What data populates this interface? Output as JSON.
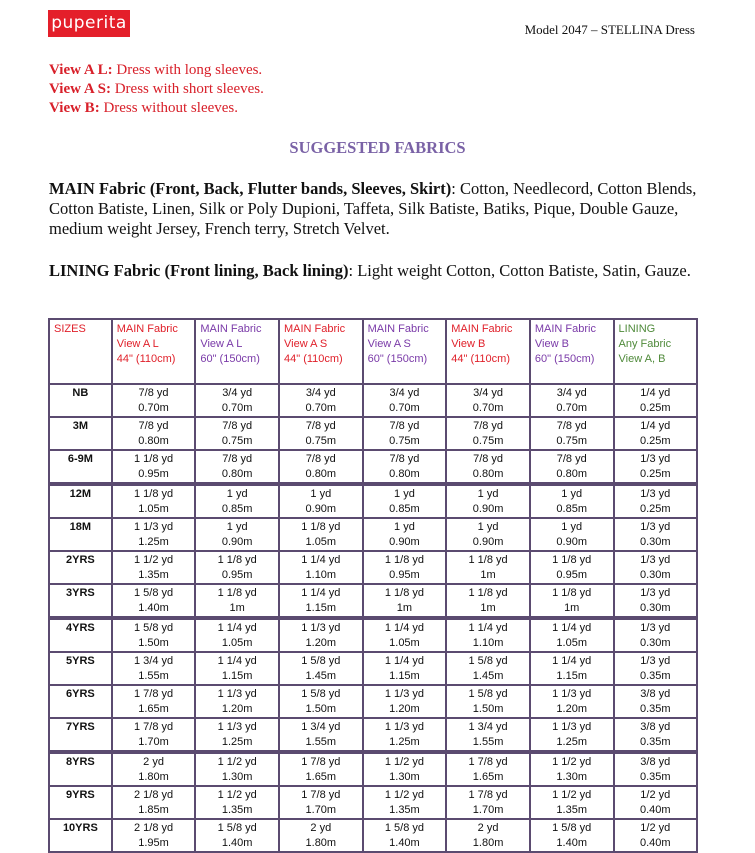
{
  "header": {
    "logo_text": "puperita",
    "model": "Model 2047 – STELLINA Dress"
  },
  "views": [
    {
      "label": "View A L:",
      "text": " Dress with long sleeves."
    },
    {
      "label": "View A S:",
      "text": " Dress with short sleeves."
    },
    {
      "label": "View B:",
      "text": " Dress without sleeves."
    }
  ],
  "heading": "SUGGESTED FABRICS",
  "main_fabric": {
    "label": "MAIN Fabric (Front, Back, Flutter bands, Sleeves, Skirt)",
    "text": ": Cotton, Needlecord, Cotton Blends, Cotton Batiste, Linen, Silk or Poly Dupioni, Taffeta, Silk Batiste, Batiks, Pique, Double Gauze, medium weight Jersey, French terry, Stretch Velvet."
  },
  "lining_fabric": {
    "label": "LINING Fabric (Front lining, Back lining)",
    "text": ": Light weight Cotton, Cotton Batiste, Satin, Gauze."
  },
  "colors": {
    "red": "#e0202a",
    "purple": "#7a3aa8",
    "green": "#4f8a3a",
    "border": "#5b4b70"
  },
  "table": {
    "headers": [
      {
        "lines": [
          "SIZES"
        ],
        "color": "red"
      },
      {
        "lines": [
          "MAIN Fabric",
          "View A L",
          "44\" (110cm)"
        ],
        "color": "red"
      },
      {
        "lines": [
          "MAIN Fabric",
          "View A L",
          "60\" (150cm)"
        ],
        "color": "purple"
      },
      {
        "lines": [
          "MAIN Fabric",
          "View A S",
          "44\" (110cm)"
        ],
        "color": "red"
      },
      {
        "lines": [
          "MAIN Fabric",
          "View A S",
          "60\" (150cm)"
        ],
        "color": "purple"
      },
      {
        "lines": [
          "MAIN Fabric",
          "View B",
          "44\" (110cm)"
        ],
        "color": "red"
      },
      {
        "lines": [
          "MAIN Fabric",
          "View B",
          "60\" (150cm)"
        ],
        "color": "purple"
      },
      {
        "lines": [
          "LINING",
          "Any Fabric",
          "View A, B"
        ],
        "color": "green"
      }
    ],
    "rows": [
      {
        "size": "NB",
        "cells": [
          [
            "7/8 yd",
            "0.70m"
          ],
          [
            "3/4 yd",
            "0.70m"
          ],
          [
            "3/4 yd",
            "0.70m"
          ],
          [
            "3/4 yd",
            "0.70m"
          ],
          [
            "3/4 yd",
            "0.70m"
          ],
          [
            "3/4 yd",
            "0.70m"
          ],
          [
            "1/4 yd",
            "0.25m"
          ]
        ]
      },
      {
        "size": "3M",
        "cells": [
          [
            "7/8 yd",
            "0.80m"
          ],
          [
            "7/8 yd",
            "0.75m"
          ],
          [
            "7/8 yd",
            "0.75m"
          ],
          [
            "7/8 yd",
            "0.75m"
          ],
          [
            "7/8 yd",
            "0.75m"
          ],
          [
            "7/8 yd",
            "0.75m"
          ],
          [
            "1/4 yd",
            "0.25m"
          ]
        ]
      },
      {
        "size": "6-9M",
        "cells": [
          [
            "1 1/8 yd",
            "0.95m"
          ],
          [
            "7/8 yd",
            "0.80m"
          ],
          [
            "7/8 yd",
            "0.80m"
          ],
          [
            "7/8 yd",
            "0.80m"
          ],
          [
            "7/8 yd",
            "0.80m"
          ],
          [
            "7/8 yd",
            "0.80m"
          ],
          [
            "1/3 yd",
            "0.25m"
          ]
        ]
      },
      {
        "size": "12M",
        "cells": [
          [
            "1 1/8 yd",
            "1.05m"
          ],
          [
            "1 yd",
            "0.85m"
          ],
          [
            "1 yd",
            "0.90m"
          ],
          [
            "1 yd",
            "0.85m"
          ],
          [
            "1 yd",
            "0.90m"
          ],
          [
            "1 yd",
            "0.85m"
          ],
          [
            "1/3 yd",
            "0.25m"
          ]
        ]
      },
      {
        "size": "18M",
        "cells": [
          [
            "1 1/3 yd",
            "1.25m"
          ],
          [
            "1 yd",
            "0.90m"
          ],
          [
            "1 1/8 yd",
            "1.05m"
          ],
          [
            "1 yd",
            "0.90m"
          ],
          [
            "1 yd",
            "0.90m"
          ],
          [
            "1 yd",
            "0.90m"
          ],
          [
            "1/3 yd",
            "0.30m"
          ]
        ]
      },
      {
        "size": "2YRS",
        "cells": [
          [
            "1 1/2 yd",
            "1.35m"
          ],
          [
            "1 1/8 yd",
            "0.95m"
          ],
          [
            "1 1/4 yd",
            "1.10m"
          ],
          [
            "1 1/8 yd",
            "0.95m"
          ],
          [
            "1 1/8 yd",
            "1m"
          ],
          [
            "1 1/8 yd",
            "0.95m"
          ],
          [
            "1/3 yd",
            "0.30m"
          ]
        ]
      },
      {
        "size": "3YRS",
        "cells": [
          [
            "1 5/8 yd",
            "1.40m"
          ],
          [
            "1 1/8 yd",
            "1m"
          ],
          [
            "1 1/4 yd",
            "1.15m"
          ],
          [
            "1 1/8 yd",
            "1m"
          ],
          [
            "1 1/8 yd",
            "1m"
          ],
          [
            "1 1/8 yd",
            "1m"
          ],
          [
            "1/3 yd",
            "0.30m"
          ]
        ]
      },
      {
        "size": "4YRS",
        "cells": [
          [
            "1 5/8 yd",
            "1.50m"
          ],
          [
            "1 1/4 yd",
            "1.05m"
          ],
          [
            "1 1/3 yd",
            "1.20m"
          ],
          [
            "1 1/4 yd",
            "1.05m"
          ],
          [
            "1 1/4 yd",
            "1.10m"
          ],
          [
            "1 1/4 yd",
            "1.05m"
          ],
          [
            "1/3 yd",
            "0.30m"
          ]
        ]
      },
      {
        "size": "5YRS",
        "cells": [
          [
            "1 3/4 yd",
            "1.55m"
          ],
          [
            "1 1/4 yd",
            "1.15m"
          ],
          [
            "1 5/8 yd",
            "1.45m"
          ],
          [
            "1 1/4 yd",
            "1.15m"
          ],
          [
            "1 5/8 yd",
            "1.45m"
          ],
          [
            "1 1/4 yd",
            "1.15m"
          ],
          [
            "1/3 yd",
            "0.35m"
          ]
        ]
      },
      {
        "size": "6YRS",
        "cells": [
          [
            "1 7/8 yd",
            "1.65m"
          ],
          [
            "1 1/3 yd",
            "1.20m"
          ],
          [
            "1 5/8 yd",
            "1.50m"
          ],
          [
            "1 1/3 yd",
            "1.20m"
          ],
          [
            "1 5/8 yd",
            "1.50m"
          ],
          [
            "1 1/3 yd",
            "1.20m"
          ],
          [
            "3/8 yd",
            "0.35m"
          ]
        ]
      },
      {
        "size": "7YRS",
        "cells": [
          [
            "1 7/8 yd",
            "1.70m"
          ],
          [
            "1 1/3 yd",
            "1.25m"
          ],
          [
            "1 3/4 yd",
            "1.55m"
          ],
          [
            "1 1/3 yd",
            "1.25m"
          ],
          [
            "1 3/4 yd",
            "1.55m"
          ],
          [
            "1 1/3 yd",
            "1.25m"
          ],
          [
            "3/8 yd",
            "0.35m"
          ]
        ]
      },
      {
        "size": "8YRS",
        "cells": [
          [
            "2 yd",
            "1.80m"
          ],
          [
            "1 1/2 yd",
            "1.30m"
          ],
          [
            "1 7/8 yd",
            "1.65m"
          ],
          [
            "1 1/2 yd",
            "1.30m"
          ],
          [
            "1 7/8 yd",
            "1.65m"
          ],
          [
            "1 1/2 yd",
            "1.30m"
          ],
          [
            "3/8 yd",
            "0.35m"
          ]
        ]
      },
      {
        "size": "9YRS",
        "cells": [
          [
            "2 1/8 yd",
            "1.85m"
          ],
          [
            "1 1/2 yd",
            "1.35m"
          ],
          [
            "1 7/8 yd",
            "1.70m"
          ],
          [
            "1 1/2 yd",
            "1.35m"
          ],
          [
            "1 7/8 yd",
            "1.70m"
          ],
          [
            "1 1/2 yd",
            "1.35m"
          ],
          [
            "1/2 yd",
            "0.40m"
          ]
        ]
      },
      {
        "size": "10YRS",
        "cells": [
          [
            "2 1/8 yd",
            "1.95m"
          ],
          [
            "1 5/8 yd",
            "1.40m"
          ],
          [
            "2 yd",
            "1.80m"
          ],
          [
            "1 5/8 yd",
            "1.40m"
          ],
          [
            "2 yd",
            "1.80m"
          ],
          [
            "1 5/8 yd",
            "1.40m"
          ],
          [
            "1/2 yd",
            "0.40m"
          ]
        ]
      }
    ]
  }
}
